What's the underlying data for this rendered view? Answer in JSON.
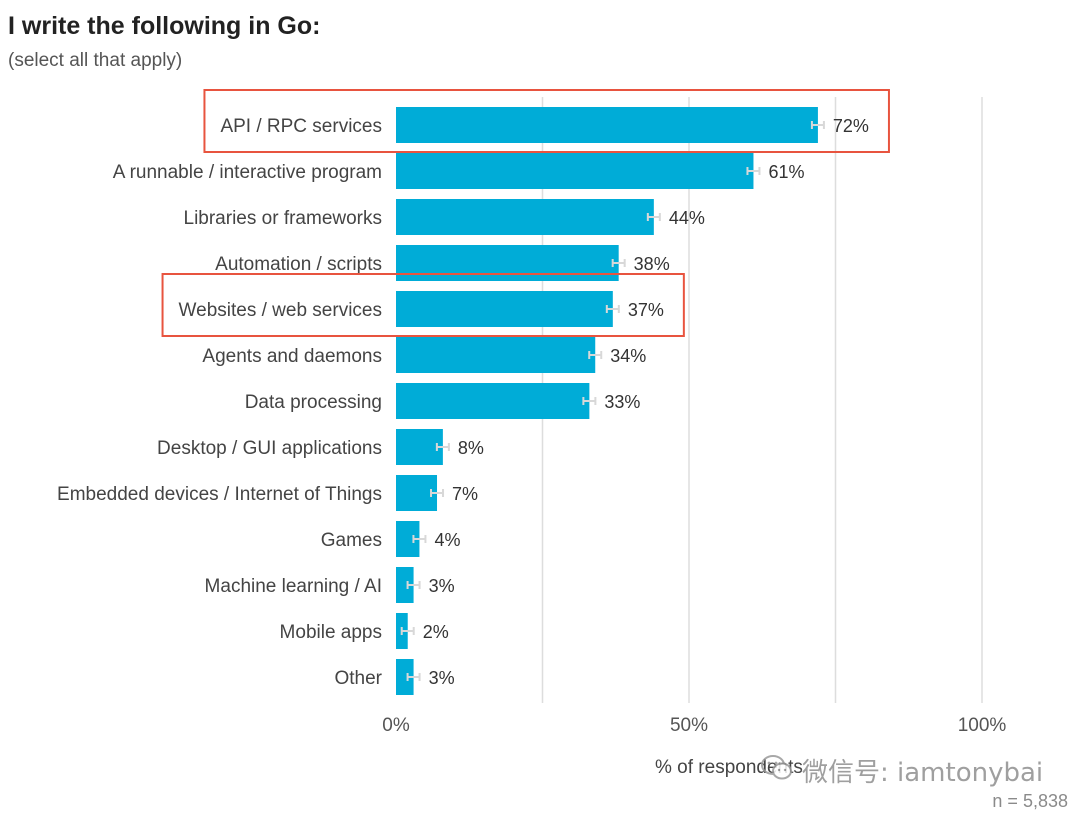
{
  "chart_data": {
    "type": "bar",
    "orientation": "horizontal",
    "title": "I write the following in Go:",
    "subtitle": "(select all that apply)",
    "xlabel": "% of respondents",
    "n_label": "n =  5,838",
    "categories": [
      "API / RPC services",
      "A runnable / interactive program",
      "Libraries or frameworks",
      "Automation / scripts",
      "Websites / web services",
      "Agents and daemons",
      "Data processing",
      "Desktop / GUI applications",
      "Embedded devices / Internet of Things",
      "Games",
      "Machine learning / AI",
      "Mobile apps",
      "Other"
    ],
    "values": [
      72,
      61,
      44,
      38,
      37,
      34,
      33,
      8,
      7,
      4,
      3,
      2,
      3
    ],
    "value_labels": [
      "72%",
      "61%",
      "44%",
      "38%",
      "37%",
      "34%",
      "33%",
      "8%",
      "7%",
      "4%",
      "3%",
      "2%",
      "3%"
    ],
    "highlighted": [
      "API / RPC services",
      "Websites / web services"
    ],
    "xlim": [
      0,
      100
    ],
    "xticks": [
      0,
      50,
      100
    ],
    "xtick_labels": [
      "0%",
      "50%",
      "100%"
    ],
    "grid": true,
    "error_bars": true,
    "colors": {
      "bar": "#00acd7",
      "highlight_box": "#e8543f",
      "grid": "#dddddd",
      "error_bar": "#d8d8d8"
    }
  },
  "watermark": {
    "text": "微信号: iamtonybai",
    "icon": "wechat-icon"
  }
}
